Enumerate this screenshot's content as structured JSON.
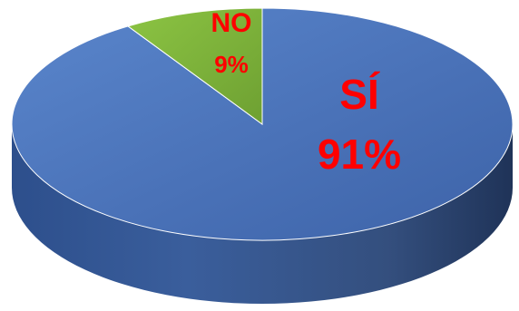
{
  "chart_data": {
    "type": "pie",
    "style": "3d",
    "categories": [
      "SÍ",
      "NO"
    ],
    "values": [
      91,
      9
    ],
    "value_labels": [
      "91%",
      "9%"
    ],
    "colors": {
      "SÍ": "#4a72b8",
      "NO": "#7bb33a",
      "label": "#ff0000"
    },
    "legend": "none",
    "title": ""
  }
}
